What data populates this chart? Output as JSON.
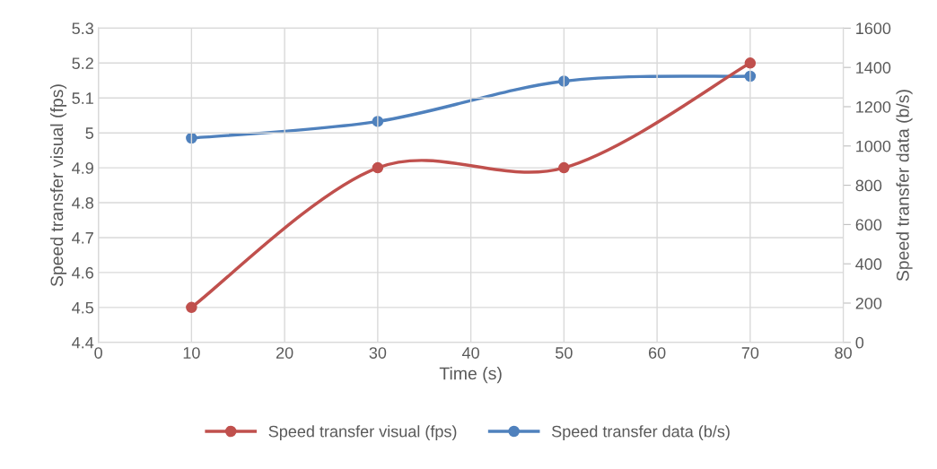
{
  "chart_data": {
    "type": "line",
    "xlabel": "Time (s)",
    "ylabel": "Speed transfer visual (fps)",
    "y2label": "Speed transfer data (b/s)",
    "x": [
      10,
      30,
      50,
      70
    ],
    "series": [
      {
        "name": "Speed transfer visual (fps)",
        "color": "#c0504d",
        "values": [
          4.5,
          4.9,
          4.9,
          5.2
        ]
      },
      {
        "name": "Speed transfer data (b/s)",
        "color": "#4f81bd",
        "values": [
          1040,
          1125,
          1330,
          1355
        ],
        "axis": "y2"
      }
    ],
    "xlim": [
      0,
      80
    ],
    "xticks": [
      0,
      10,
      20,
      30,
      40,
      50,
      60,
      70,
      80
    ],
    "ylim": [
      4.4,
      5.3
    ],
    "yticks": [
      4.4,
      4.5,
      4.6,
      4.7,
      4.8,
      4.9,
      {
        "value": 5.0,
        "label": "5"
      },
      5.1,
      5.2,
      5.3
    ],
    "y2lim": [
      0,
      1600
    ],
    "y2ticks": [
      0,
      200,
      400,
      600,
      800,
      1000,
      1200,
      1400,
      1600
    ],
    "grid": true,
    "legend": "bottom",
    "marker": "circle",
    "line_style": "solid"
  }
}
